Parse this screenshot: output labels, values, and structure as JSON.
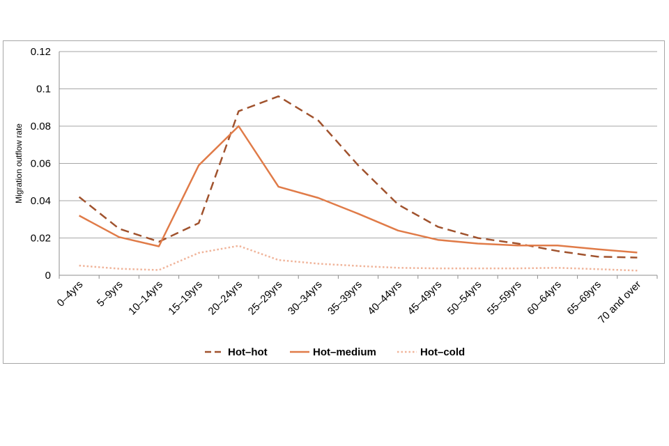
{
  "chart_data": {
    "type": "line",
    "title": "",
    "xlabel": "",
    "ylabel": "Migration outflow rate",
    "ylim": [
      0,
      0.12
    ],
    "yticks": [
      "0",
      "0.02",
      "0.04",
      "0.06",
      "0.08",
      "0.1",
      "0.12"
    ],
    "grid": true,
    "legend_position": "bottom",
    "categories": [
      "0–4yrs",
      "5–9yrs",
      "10–14yrs",
      "15–19yrs",
      "20–24yrs",
      "25–29yrs",
      "30–34yrs",
      "35–39yrs",
      "40–44yrs",
      "45–49yrs",
      "50–54yrs",
      "55–59yrs",
      "60–64yrs",
      "65–69yrs",
      "70 and over"
    ],
    "series": [
      {
        "name": "Hot–hot",
        "style": "dashed",
        "color": "#a0522d",
        "values": [
          0.042,
          0.025,
          0.018,
          0.028,
          0.088,
          0.096,
          0.083,
          0.059,
          0.038,
          0.026,
          0.02,
          0.017,
          0.013,
          0.01,
          0.0095
        ]
      },
      {
        "name": "Hot–medium",
        "style": "solid",
        "color": "#e07b48",
        "values": [
          0.032,
          0.0205,
          0.0155,
          0.059,
          0.08,
          0.0475,
          0.0415,
          0.033,
          0.024,
          0.019,
          0.017,
          0.016,
          0.016,
          0.014,
          0.0122
        ]
      },
      {
        "name": "Hot–cold",
        "style": "dotted",
        "color": "#f0b49a",
        "values": [
          0.0052,
          0.0035,
          0.0028,
          0.012,
          0.0158,
          0.0082,
          0.0062,
          0.005,
          0.004,
          0.0037,
          0.0037,
          0.0037,
          0.004,
          0.0033,
          0.0025
        ]
      }
    ]
  }
}
